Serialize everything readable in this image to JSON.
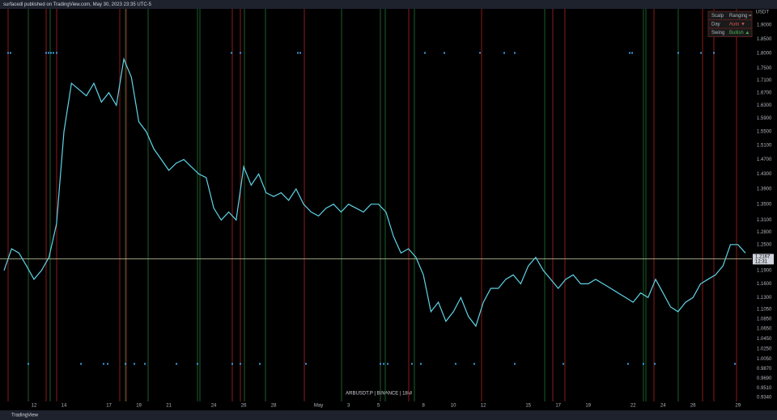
{
  "header": "surfacedl published on TradingView.com, May 30, 2023 23:35 UTC-5",
  "footer": "TradingView",
  "chart_data": {
    "type": "line",
    "watermark": "ARBUSDT.P | BINANCE | 18M",
    "y_unit": "USDT",
    "log_scale": true,
    "grid": false,
    "categories": [
      null,
      null,
      null,
      null,
      "12",
      null,
      null,
      null,
      "14",
      null,
      null,
      null,
      null,
      null,
      "17",
      null,
      null,
      null,
      "19",
      null,
      null,
      null,
      "21",
      null,
      null,
      null,
      null,
      null,
      "24",
      null,
      null,
      null,
      "26",
      null,
      null,
      null,
      "28",
      null,
      null,
      null,
      null,
      null,
      "May",
      null,
      null,
      null,
      "3",
      null,
      null,
      null,
      "5",
      null,
      null,
      null,
      null,
      null,
      "8",
      null,
      null,
      null,
      "10",
      null,
      null,
      null,
      "12",
      null,
      null,
      null,
      null,
      null,
      "15",
      null,
      null,
      null,
      "17",
      null,
      null,
      null,
      "19",
      null,
      null,
      null,
      null,
      null,
      "22",
      null,
      null,
      null,
      "24",
      null,
      null,
      null,
      "26",
      null,
      null,
      null,
      null,
      null,
      "29",
      null
    ],
    "series": [
      {
        "color": "#5fd4e8",
        "values": [
          1.19,
          1.24,
          1.23,
          1.2,
          1.17,
          1.19,
          1.22,
          1.3,
          1.55,
          1.7,
          1.68,
          1.66,
          1.7,
          1.64,
          1.67,
          1.63,
          1.78,
          1.72,
          1.58,
          1.55,
          1.5,
          1.47,
          1.44,
          1.46,
          1.47,
          1.45,
          1.43,
          1.42,
          1.34,
          1.31,
          1.33,
          1.31,
          1.45,
          1.4,
          1.43,
          1.38,
          1.37,
          1.38,
          1.36,
          1.39,
          1.35,
          1.33,
          1.32,
          1.34,
          1.35,
          1.33,
          1.35,
          1.34,
          1.33,
          1.35,
          1.35,
          1.33,
          1.27,
          1.23,
          1.24,
          1.22,
          1.18,
          1.1,
          1.12,
          1.08,
          1.1,
          1.13,
          1.09,
          1.07,
          1.12,
          1.15,
          1.15,
          1.17,
          1.18,
          1.16,
          1.2,
          1.22,
          1.19,
          1.17,
          1.15,
          1.17,
          1.18,
          1.16,
          1.16,
          1.17,
          1.16,
          1.15,
          1.14,
          1.13,
          1.12,
          1.14,
          1.13,
          1.17,
          1.14,
          1.11,
          1.1,
          1.12,
          1.13,
          1.16,
          1.17,
          1.18,
          1.2,
          1.25,
          1.25,
          1.23
        ]
      }
    ],
    "ylim": [
      0.927,
      1.956
    ],
    "yticks": [
      {
        "value": 1.9,
        "label": "1.9000"
      },
      {
        "value": 1.85,
        "label": "1.8500"
      },
      {
        "value": 1.8,
        "label": "1.8000"
      },
      {
        "value": 1.75,
        "label": "1.7500"
      },
      {
        "value": 1.71,
        "label": "1.7100"
      },
      {
        "value": 1.67,
        "label": "1.6700"
      },
      {
        "value": 1.63,
        "label": "1.6300"
      },
      {
        "value": 1.59,
        "label": "1.5900"
      },
      {
        "value": 1.55,
        "label": "1.5500"
      },
      {
        "value": 1.51,
        "label": "1.5100"
      },
      {
        "value": 1.47,
        "label": "1.4700"
      },
      {
        "value": 1.43,
        "label": "1.4300"
      },
      {
        "value": 1.39,
        "label": "1.3900"
      },
      {
        "value": 1.35,
        "label": "1.3500"
      },
      {
        "value": 1.31,
        "label": "1.3100"
      },
      {
        "value": 1.28,
        "label": "1.2800"
      },
      {
        "value": 1.25,
        "label": "1.2500"
      },
      {
        "value": 1.19,
        "label": "1.1900"
      },
      {
        "value": 1.16,
        "label": "1.1600"
      },
      {
        "value": 1.13,
        "label": "1.1300"
      },
      {
        "value": 1.105,
        "label": "1.1050"
      },
      {
        "value": 1.085,
        "label": "1.0850"
      },
      {
        "value": 1.065,
        "label": "1.0650"
      },
      {
        "value": 1.045,
        "label": "1.0450"
      },
      {
        "value": 1.025,
        "label": "1.0250"
      },
      {
        "value": 1.005,
        "label": "1.0050"
      },
      {
        "value": 0.987,
        "label": "0.9870"
      },
      {
        "value": 0.969,
        "label": "0.9690"
      },
      {
        "value": 0.951,
        "label": "0.9510"
      },
      {
        "value": 0.934,
        "label": "0.9340"
      }
    ],
    "last_price": {
      "value": 1.2167,
      "label": "1.2167"
    },
    "countdown": "12:31",
    "status_table": [
      [
        "Scalp",
        "Ranging ="
      ],
      [
        "Day",
        "Auto ▼"
      ],
      [
        "Swing",
        "Bullish ▲"
      ]
    ]
  }
}
